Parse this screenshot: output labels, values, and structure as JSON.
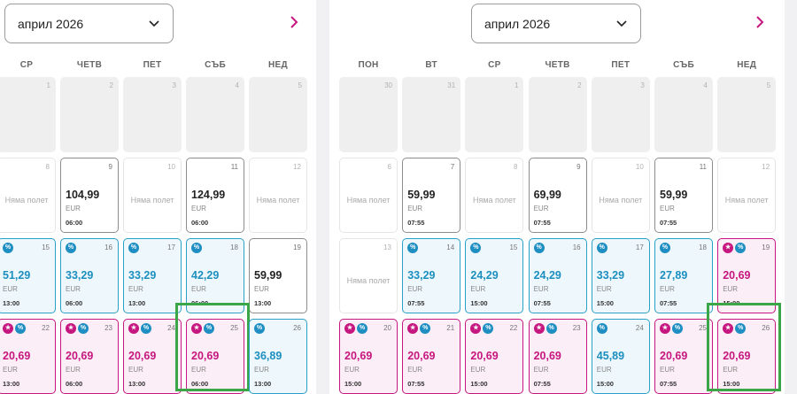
{
  "left": {
    "month_label": "април 2026",
    "weekdays": [
      "СР",
      "ЧЕТВ",
      "ПЕТ",
      "СЪБ",
      "НЕД"
    ],
    "rows": [
      [
        {
          "day": "1",
          "state": "disabled"
        },
        {
          "day": "2",
          "state": "disabled"
        },
        {
          "day": "3",
          "state": "disabled"
        },
        {
          "day": "4",
          "state": "disabled"
        },
        {
          "day": "5",
          "state": "disabled"
        }
      ],
      [
        {
          "day": "8",
          "state": "none",
          "label": "Няма полет"
        },
        {
          "day": "9",
          "state": "regular",
          "price": "104,99",
          "currency": "EUR",
          "time": "06:00"
        },
        {
          "day": "10",
          "state": "none",
          "label": "Няма полет"
        },
        {
          "day": "11",
          "state": "regular",
          "price": "124,99",
          "currency": "EUR",
          "time": "06:00"
        },
        {
          "day": "12",
          "state": "none",
          "label": "Няма полет"
        }
      ],
      [
        {
          "day": "15",
          "state": "discount",
          "price": "51,29",
          "currency": "EUR",
          "time": "13:00",
          "badges": [
            "pct"
          ]
        },
        {
          "day": "16",
          "state": "discount",
          "price": "33,29",
          "currency": "EUR",
          "time": "06:00",
          "badges": [
            "pct"
          ]
        },
        {
          "day": "17",
          "state": "discount",
          "price": "33,29",
          "currency": "EUR",
          "time": "13:00",
          "badges": [
            "pct"
          ]
        },
        {
          "day": "18",
          "state": "discount",
          "price": "42,29",
          "currency": "EUR",
          "time": "06:00",
          "badges": [
            "pct"
          ]
        },
        {
          "day": "19",
          "state": "regular",
          "price": "59,99",
          "currency": "EUR",
          "time": "13:00"
        }
      ],
      [
        {
          "day": "22",
          "state": "promo",
          "price": "20,69",
          "currency": "EUR",
          "time": "13:00",
          "badges": [
            "star",
            "pct"
          ]
        },
        {
          "day": "23",
          "state": "promo",
          "price": "20,69",
          "currency": "EUR",
          "time": "06:00",
          "badges": [
            "star",
            "pct"
          ]
        },
        {
          "day": "24",
          "state": "promo",
          "price": "20,69",
          "currency": "EUR",
          "time": "13:00",
          "badges": [
            "star",
            "pct"
          ]
        },
        {
          "day": "25",
          "state": "promo",
          "price": "20,69",
          "currency": "EUR",
          "time": "06:00",
          "badges": [
            "star",
            "pct"
          ],
          "highlighted": true
        },
        {
          "day": "26",
          "state": "discount",
          "price": "36,89",
          "currency": "EUR",
          "time": "13:00",
          "badges": [
            "pct"
          ]
        }
      ]
    ]
  },
  "right": {
    "month_label": "април 2026",
    "weekdays": [
      "ПОН",
      "ВТ",
      "СР",
      "ЧЕТВ",
      "ПЕТ",
      "СЪБ",
      "НЕД"
    ],
    "rows": [
      [
        {
          "day": "30",
          "state": "disabled"
        },
        {
          "day": "31",
          "state": "disabled"
        },
        {
          "day": "1",
          "state": "disabled"
        },
        {
          "day": "2",
          "state": "disabled"
        },
        {
          "day": "3",
          "state": "disabled"
        },
        {
          "day": "4",
          "state": "disabled"
        },
        {
          "day": "5",
          "state": "disabled"
        }
      ],
      [
        {
          "day": "6",
          "state": "none",
          "label": "Няма полет"
        },
        {
          "day": "7",
          "state": "regular",
          "price": "59,99",
          "currency": "EUR",
          "time": "07:55"
        },
        {
          "day": "8",
          "state": "none",
          "label": "Няма полет"
        },
        {
          "day": "9",
          "state": "regular",
          "price": "69,99",
          "currency": "EUR",
          "time": "07:55"
        },
        {
          "day": "10",
          "state": "none",
          "label": "Няма полет"
        },
        {
          "day": "11",
          "state": "regular",
          "price": "59,99",
          "currency": "EUR",
          "time": "07:55"
        },
        {
          "day": "12",
          "state": "none",
          "label": "Няма полет"
        }
      ],
      [
        {
          "day": "13",
          "state": "none",
          "label": "Няма полет"
        },
        {
          "day": "14",
          "state": "discount",
          "price": "33,29",
          "currency": "EUR",
          "time": "07:55",
          "badges": [
            "pct"
          ]
        },
        {
          "day": "15",
          "state": "discount",
          "price": "24,29",
          "currency": "EUR",
          "time": "15:00",
          "badges": [
            "pct"
          ]
        },
        {
          "day": "16",
          "state": "discount",
          "price": "24,29",
          "currency": "EUR",
          "time": "07:55",
          "badges": [
            "pct"
          ]
        },
        {
          "day": "17",
          "state": "discount",
          "price": "33,29",
          "currency": "EUR",
          "time": "15:00",
          "badges": [
            "pct"
          ]
        },
        {
          "day": "18",
          "state": "discount",
          "price": "27,89",
          "currency": "EUR",
          "time": "07:55",
          "badges": [
            "pct"
          ]
        },
        {
          "day": "19",
          "state": "promo",
          "price": "20,69",
          "currency": "EUR",
          "time": "15:00",
          "badges": [
            "star",
            "pct"
          ]
        }
      ],
      [
        {
          "day": "20",
          "state": "promo",
          "price": "20,69",
          "currency": "EUR",
          "time": "15:00",
          "badges": [
            "star",
            "pct"
          ]
        },
        {
          "day": "21",
          "state": "promo",
          "price": "20,69",
          "currency": "EUR",
          "time": "07:55",
          "badges": [
            "star",
            "pct"
          ]
        },
        {
          "day": "22",
          "state": "promo",
          "price": "20,69",
          "currency": "EUR",
          "time": "15:00",
          "badges": [
            "star",
            "pct"
          ]
        },
        {
          "day": "23",
          "state": "promo",
          "price": "20,69",
          "currency": "EUR",
          "time": "07:55",
          "badges": [
            "star",
            "pct"
          ]
        },
        {
          "day": "24",
          "state": "discount",
          "price": "45,89",
          "currency": "EUR",
          "time": "15:00",
          "badges": [
            "pct"
          ]
        },
        {
          "day": "25",
          "state": "promo",
          "price": "20,69",
          "currency": "EUR",
          "time": "07:55",
          "badges": [
            "star",
            "pct"
          ]
        },
        {
          "day": "26",
          "state": "promo",
          "price": "20,69",
          "currency": "EUR",
          "time": "15:00",
          "badges": [
            "star",
            "pct"
          ],
          "highlighted": true
        }
      ]
    ]
  },
  "badge_glyphs": {
    "pct": "%",
    "star": "★"
  },
  "colors": {
    "promo": "#c6167f",
    "discount": "#1f8ec2",
    "highlight": "#3aa648",
    "arrow": "#c6167f"
  }
}
